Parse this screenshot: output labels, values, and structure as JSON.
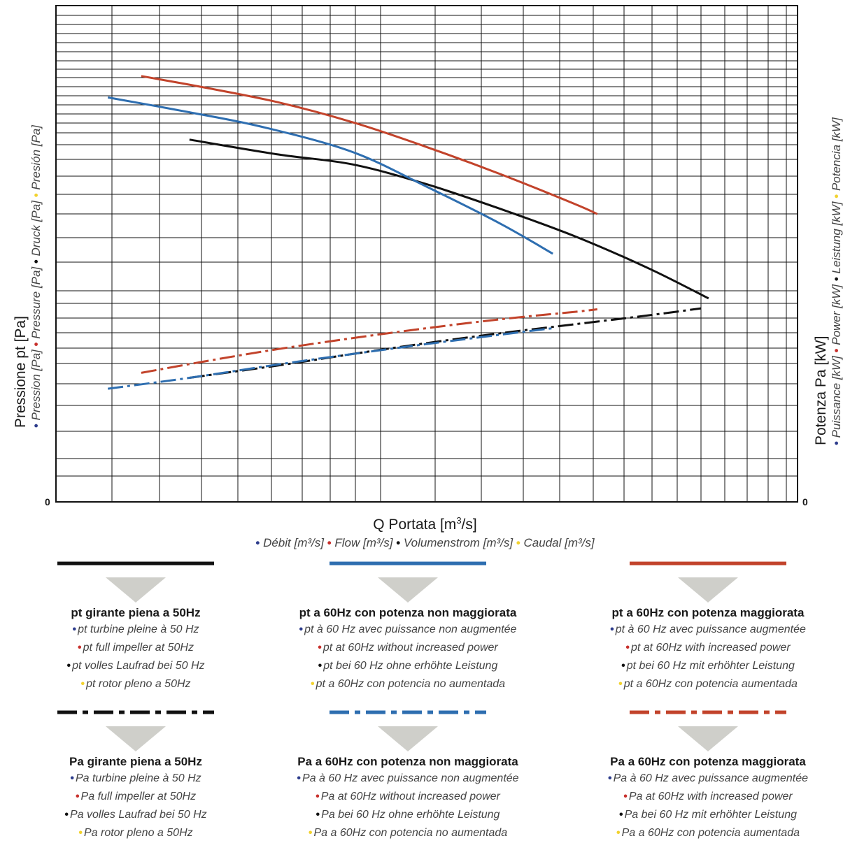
{
  "colors": {
    "black": "#111111",
    "blue": "#2e6eb0",
    "red": "#c2432b",
    "grid": "#111111",
    "arrow": "#cfcfca",
    "dot_fr": "#2d3c8c",
    "dot_en": "#c8302c",
    "dot_de": "#111111",
    "dot_es": "#f2d22e"
  },
  "y_axis": {
    "main": "Pressione pt [Pa]",
    "subs": [
      {
        "text": "Pression [Pa]",
        "dot": "dot_fr"
      },
      {
        "text": "Pressure [Pa]",
        "dot": "dot_en"
      },
      {
        "text": "Druck [Pa]",
        "dot": "dot_de"
      },
      {
        "text": "Presión [Pa]",
        "dot": "dot_es"
      }
    ],
    "zero": "0"
  },
  "y2_axis": {
    "main": "Potenza Pa [kW]",
    "subs": [
      {
        "text": "Puissance [kW]",
        "dot": "dot_fr"
      },
      {
        "text": "Power [kW]",
        "dot": "dot_en"
      },
      {
        "text": "Leistung [kW]",
        "dot": "dot_de"
      },
      {
        "text": "Potencia [kW]",
        "dot": "dot_es"
      }
    ],
    "zero": "0"
  },
  "x_axis": {
    "main_prefix": "Q Portata [m",
    "main_sup": "3",
    "main_suffix": "/s]",
    "subs": [
      {
        "text": "Débit [m³/s]",
        "dot": "dot_fr"
      },
      {
        "text": "Flow [m³/s]",
        "dot": "dot_en"
      },
      {
        "text": "Volumenstrom [m³/s]",
        "dot": "dot_de"
      },
      {
        "text": "Caudal [m³/s]",
        "dot": "dot_es"
      }
    ]
  },
  "chart_data": {
    "type": "line",
    "title": "",
    "xlabel": "Q Portata [m³/s]",
    "ylabel": "Pressione pt [Pa]",
    "y2label": "Potenza Pa [kW]",
    "xlim": [
      0,
      1
    ],
    "ylim": [
      0,
      1
    ],
    "grid": true,
    "series": [
      {
        "name": "pt girante piena a 50Hz",
        "color": "#111111",
        "dash": "solid",
        "points": [
          [
            0.18,
            0.73
          ],
          [
            0.3,
            0.7
          ],
          [
            0.4,
            0.68
          ],
          [
            0.5,
            0.64
          ],
          [
            0.6,
            0.59
          ],
          [
            0.7,
            0.535
          ],
          [
            0.8,
            0.47
          ],
          [
            0.88,
            0.41
          ]
        ]
      },
      {
        "name": "pt a 60Hz con potenza non maggiorata",
        "color": "#2e6eb0",
        "dash": "solid",
        "points": [
          [
            0.07,
            0.815
          ],
          [
            0.18,
            0.785
          ],
          [
            0.28,
            0.755
          ],
          [
            0.4,
            0.705
          ],
          [
            0.5,
            0.635
          ],
          [
            0.6,
            0.56
          ],
          [
            0.67,
            0.5
          ]
        ]
      },
      {
        "name": "pt a 60Hz con potenza maggiorata",
        "color": "#c2432b",
        "dash": "solid",
        "points": [
          [
            0.115,
            0.858
          ],
          [
            0.2,
            0.835
          ],
          [
            0.3,
            0.805
          ],
          [
            0.4,
            0.765
          ],
          [
            0.5,
            0.715
          ],
          [
            0.6,
            0.66
          ],
          [
            0.7,
            0.6
          ],
          [
            0.73,
            0.58
          ]
        ]
      },
      {
        "name": "Pa girante piena a 50Hz",
        "color": "#111111",
        "dash": "dashdot",
        "points": [
          [
            0.18,
            0.25
          ],
          [
            0.3,
            0.275
          ],
          [
            0.4,
            0.298
          ],
          [
            0.5,
            0.32
          ],
          [
            0.6,
            0.34
          ],
          [
            0.7,
            0.358
          ],
          [
            0.8,
            0.376
          ],
          [
            0.87,
            0.39
          ]
        ]
      },
      {
        "name": "Pa a 60Hz con potenza non maggiorata",
        "color": "#2e6eb0",
        "dash": "dashdot",
        "points": [
          [
            0.07,
            0.228
          ],
          [
            0.18,
            0.25
          ],
          [
            0.3,
            0.277
          ],
          [
            0.4,
            0.298
          ],
          [
            0.5,
            0.318
          ],
          [
            0.6,
            0.337
          ],
          [
            0.67,
            0.35
          ]
        ]
      },
      {
        "name": "Pa a 60Hz con potenza maggiorata",
        "color": "#c2432b",
        "dash": "dashdot",
        "points": [
          [
            0.115,
            0.26
          ],
          [
            0.2,
            0.283
          ],
          [
            0.3,
            0.308
          ],
          [
            0.4,
            0.33
          ],
          [
            0.5,
            0.35
          ],
          [
            0.6,
            0.368
          ],
          [
            0.7,
            0.383
          ],
          [
            0.73,
            0.388
          ]
        ]
      }
    ]
  },
  "legend": [
    {
      "key": "black-solid",
      "color": "#111111",
      "dash": "solid",
      "col": 0,
      "row": 0,
      "title": "pt girante piena a 50Hz",
      "lines": [
        {
          "text": "pt turbine pleine à 50 Hz",
          "dot": "dot_fr"
        },
        {
          "text": "pt full impeller at 50Hz",
          "dot": "dot_en"
        },
        {
          "text": "pt volles Laufrad bei 50 Hz",
          "dot": "dot_de"
        },
        {
          "text": "pt rotor pleno a 50Hz",
          "dot": "dot_es"
        }
      ]
    },
    {
      "key": "blue-solid",
      "color": "#2e6eb0",
      "dash": "solid",
      "col": 1,
      "row": 0,
      "title": "pt a 60Hz con potenza non maggiorata",
      "lines": [
        {
          "text": "pt à 60 Hz avec puissance non augmentée",
          "dot": "dot_fr"
        },
        {
          "text": "pt at 60Hz without increased power",
          "dot": "dot_en"
        },
        {
          "text": "pt bei 60 Hz ohne erhöhte Leistung",
          "dot": "dot_de"
        },
        {
          "text": "pt a 60Hz con potencia no aumentada",
          "dot": "dot_es"
        }
      ]
    },
    {
      "key": "red-solid",
      "color": "#c2432b",
      "dash": "solid",
      "col": 2,
      "row": 0,
      "title": "pt a 60Hz con potenza maggiorata",
      "lines": [
        {
          "text": "pt à 60 Hz avec puissance augmentée",
          "dot": "dot_fr"
        },
        {
          "text": "pt at 60Hz with increased power",
          "dot": "dot_en"
        },
        {
          "text": "pt bei 60 Hz mit erhöhter Leistung",
          "dot": "dot_de"
        },
        {
          "text": "pt a 60Hz con potencia aumentada",
          "dot": "dot_es"
        }
      ]
    },
    {
      "key": "black-dash",
      "color": "#111111",
      "dash": "dashdot",
      "col": 0,
      "row": 1,
      "title": "Pa girante piena a 50Hz",
      "lines": [
        {
          "text": "Pa turbine pleine à 50 Hz",
          "dot": "dot_fr"
        },
        {
          "text": "Pa full impeller at 50Hz",
          "dot": "dot_en"
        },
        {
          "text": "Pa volles Laufrad bei 50 Hz",
          "dot": "dot_de"
        },
        {
          "text": "Pa rotor pleno a 50Hz",
          "dot": "dot_es"
        }
      ]
    },
    {
      "key": "blue-dash",
      "color": "#2e6eb0",
      "dash": "dashdot",
      "col": 1,
      "row": 1,
      "title": "Pa a 60Hz con potenza non maggiorata",
      "lines": [
        {
          "text": "Pa à 60 Hz avec puissance non augmentée",
          "dot": "dot_fr"
        },
        {
          "text": "Pa at 60Hz without increased power",
          "dot": "dot_en"
        },
        {
          "text": "Pa bei 60 Hz ohne erhöhte Leistung",
          "dot": "dot_de"
        },
        {
          "text": "Pa a 60Hz con potencia no aumentada",
          "dot": "dot_es"
        }
      ]
    },
    {
      "key": "red-dash",
      "color": "#c2432b",
      "dash": "dashdot",
      "col": 2,
      "row": 1,
      "title": "Pa a 60Hz con potenza maggiorata",
      "lines": [
        {
          "text": "Pa à 60 Hz avec puissance augmentée",
          "dot": "dot_fr"
        },
        {
          "text": "Pa at 60Hz with increased power",
          "dot": "dot_en"
        },
        {
          "text": "Pa bei 60 Hz mit erhöhter Leistung",
          "dot": "dot_de"
        },
        {
          "text": "Pa a 60Hz con potencia aumentada",
          "dot": "dot_es"
        }
      ]
    }
  ]
}
